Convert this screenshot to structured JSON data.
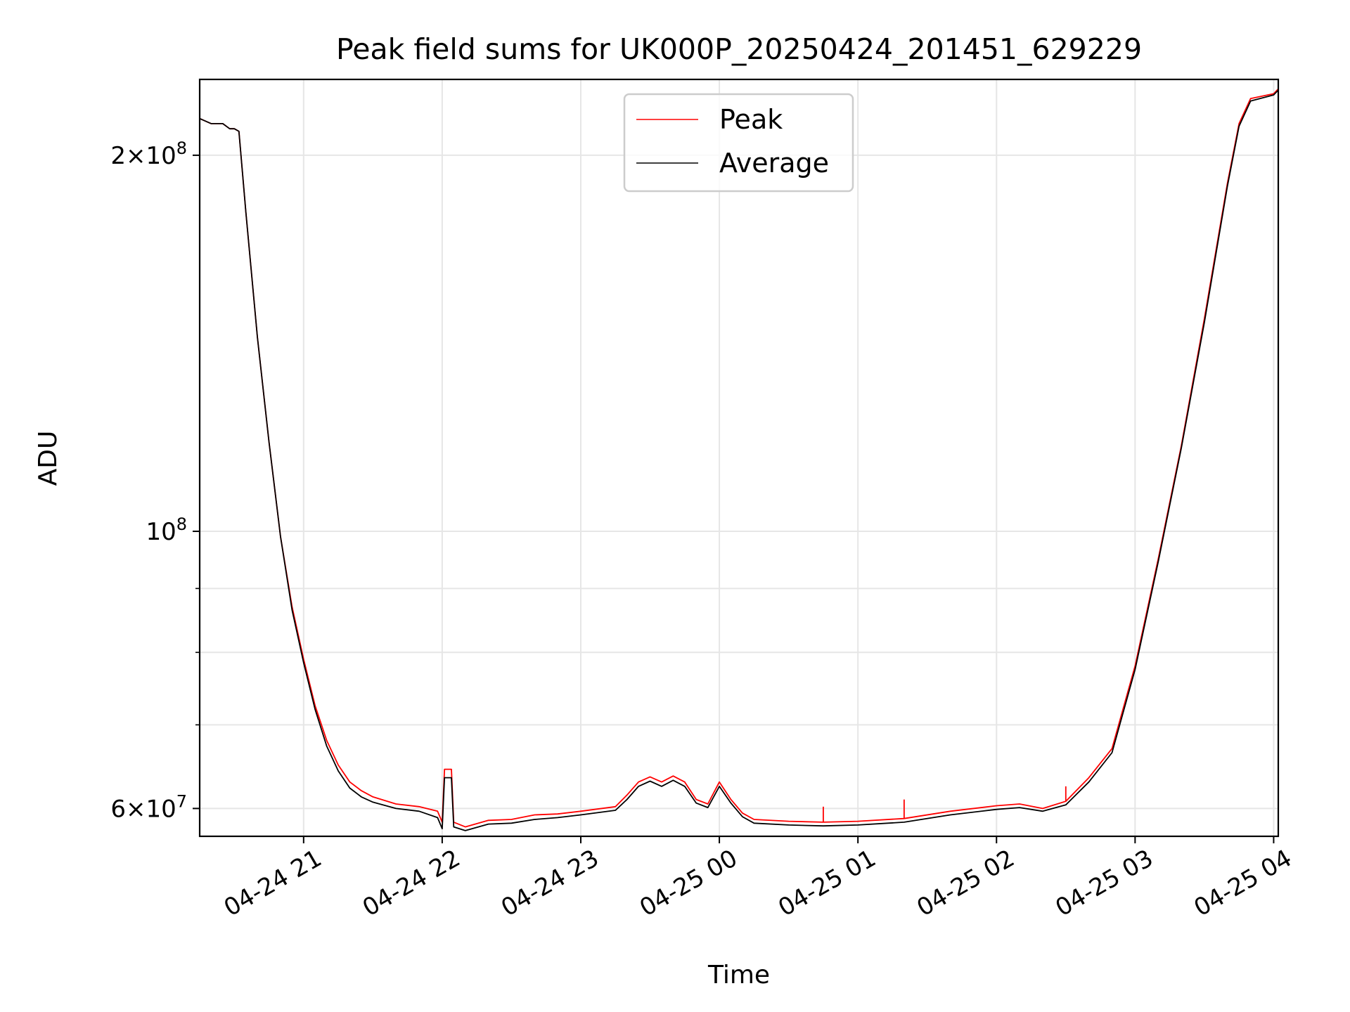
{
  "chart_data": {
    "type": "line",
    "title": "Peak field sums for UK000P_20250424_201451_629229",
    "xlabel": "Time",
    "ylabel": "ADU",
    "yscale": "log",
    "ylim": [
      57000000,
      230000000
    ],
    "xlim": [
      "2025-04-24 20:15",
      "2025-04-25 04:02"
    ],
    "grid": true,
    "legend_position": "top-center",
    "x_ticks": [
      {
        "value": "2025-04-24 21:00",
        "label": "04-24 21"
      },
      {
        "value": "2025-04-24 22:00",
        "label": "04-24 22"
      },
      {
        "value": "2025-04-24 23:00",
        "label": "04-24 23"
      },
      {
        "value": "2025-04-25 00:00",
        "label": "04-25 00"
      },
      {
        "value": "2025-04-25 01:00",
        "label": "04-25 01"
      },
      {
        "value": "2025-04-25 02:00",
        "label": "04-25 02"
      },
      {
        "value": "2025-04-25 03:00",
        "label": "04-25 03"
      },
      {
        "value": "2025-04-25 04:00",
        "label": "04-25 04"
      }
    ],
    "y_major_ticks": [
      {
        "value": 60000000,
        "mantissa": "6",
        "exp": "7"
      },
      {
        "value": 100000000,
        "mantissa": "",
        "exp": "8"
      },
      {
        "value": 200000000,
        "mantissa": "2",
        "exp": "8"
      }
    ],
    "y_minor_ticks": [
      70000000,
      80000000,
      90000000
    ],
    "series": [
      {
        "name": "Peak",
        "color": "#ff0000",
        "points": [
          [
            "2025-04-24 20:15",
            214000000
          ],
          [
            "2025-04-24 20:20",
            212000000
          ],
          [
            "2025-04-24 20:25",
            212000000
          ],
          [
            "2025-04-24 20:28",
            210000000
          ],
          [
            "2025-04-24 20:30",
            210000000
          ],
          [
            "2025-04-24 20:32",
            209000000
          ],
          [
            "2025-04-24 20:35",
            180000000
          ],
          [
            "2025-04-24 20:40",
            143000000
          ],
          [
            "2025-04-24 20:45",
            118000000
          ],
          [
            "2025-04-24 20:50",
            99000000
          ],
          [
            "2025-04-24 20:55",
            87000000
          ],
          [
            "2025-04-24 21:00",
            79000000
          ],
          [
            "2025-04-24 21:05",
            72500000
          ],
          [
            "2025-04-24 21:10",
            68000000
          ],
          [
            "2025-04-24 21:15",
            65000000
          ],
          [
            "2025-04-24 21:20",
            63000000
          ],
          [
            "2025-04-24 21:25",
            62000000
          ],
          [
            "2025-04-24 21:30",
            61300000
          ],
          [
            "2025-04-24 21:40",
            60500000
          ],
          [
            "2025-04-24 21:50",
            60200000
          ],
          [
            "2025-04-24 21:58",
            59700000
          ],
          [
            "2025-04-24 22:00",
            58500000
          ],
          [
            "2025-04-24 22:01",
            64500000
          ],
          [
            "2025-04-24 22:04",
            64500000
          ],
          [
            "2025-04-24 22:05",
            58500000
          ],
          [
            "2025-04-24 22:10",
            58000000
          ],
          [
            "2025-04-24 22:20",
            58700000
          ],
          [
            "2025-04-24 22:30",
            58800000
          ],
          [
            "2025-04-24 22:40",
            59300000
          ],
          [
            "2025-04-24 22:50",
            59400000
          ],
          [
            "2025-04-24 23:00",
            59700000
          ],
          [
            "2025-04-24 23:15",
            60200000
          ],
          [
            "2025-04-24 23:20",
            61500000
          ],
          [
            "2025-04-24 23:25",
            63000000
          ],
          [
            "2025-04-24 23:30",
            63600000
          ],
          [
            "2025-04-24 23:35",
            63000000
          ],
          [
            "2025-04-24 23:40",
            63700000
          ],
          [
            "2025-04-24 23:45",
            63000000
          ],
          [
            "2025-04-24 23:50",
            61000000
          ],
          [
            "2025-04-24 23:55",
            60500000
          ],
          [
            "2025-04-25 00:00",
            63000000
          ],
          [
            "2025-04-25 00:05",
            61000000
          ],
          [
            "2025-04-25 00:10",
            59500000
          ],
          [
            "2025-04-25 00:15",
            58800000
          ],
          [
            "2025-04-25 00:30",
            58600000
          ],
          [
            "2025-04-25 00:45",
            58500000
          ],
          [
            "2025-04-25 01:00",
            58600000
          ],
          [
            "2025-04-25 01:20",
            58900000
          ],
          [
            "2025-04-25 01:40",
            59700000
          ],
          [
            "2025-04-25 02:00",
            60300000
          ],
          [
            "2025-04-25 02:10",
            60500000
          ],
          [
            "2025-04-25 02:20",
            60000000
          ],
          [
            "2025-04-25 02:30",
            60800000
          ],
          [
            "2025-04-25 02:40",
            63500000
          ],
          [
            "2025-04-25 02:50",
            67000000
          ],
          [
            "2025-04-25 03:00",
            78000000
          ],
          [
            "2025-04-25 03:10",
            95000000
          ],
          [
            "2025-04-25 03:20",
            117000000
          ],
          [
            "2025-04-25 03:30",
            148000000
          ],
          [
            "2025-04-25 03:40",
            190000000
          ],
          [
            "2025-04-25 03:45",
            212000000
          ],
          [
            "2025-04-25 03:50",
            222000000
          ],
          [
            "2025-04-25 04:00",
            224000000
          ],
          [
            "2025-04-25 04:02",
            226000000
          ]
        ]
      },
      {
        "name": "Average",
        "color": "#000000",
        "points": [
          [
            "2025-04-24 20:15",
            214000000
          ],
          [
            "2025-04-24 20:20",
            212000000
          ],
          [
            "2025-04-24 20:25",
            212000000
          ],
          [
            "2025-04-24 20:28",
            210000000
          ],
          [
            "2025-04-24 20:30",
            210000000
          ],
          [
            "2025-04-24 20:32",
            209000000
          ],
          [
            "2025-04-24 20:35",
            180000000
          ],
          [
            "2025-04-24 20:40",
            143000000
          ],
          [
            "2025-04-24 20:45",
            118000000
          ],
          [
            "2025-04-24 20:50",
            99000000
          ],
          [
            "2025-04-24 20:55",
            86500000
          ],
          [
            "2025-04-24 21:00",
            78500000
          ],
          [
            "2025-04-24 21:05",
            72000000
          ],
          [
            "2025-04-24 21:10",
            67300000
          ],
          [
            "2025-04-24 21:15",
            64300000
          ],
          [
            "2025-04-24 21:20",
            62300000
          ],
          [
            "2025-04-24 21:25",
            61300000
          ],
          [
            "2025-04-24 21:30",
            60700000
          ],
          [
            "2025-04-24 21:40",
            60000000
          ],
          [
            "2025-04-24 21:50",
            59700000
          ],
          [
            "2025-04-24 21:58",
            59000000
          ],
          [
            "2025-04-24 22:00",
            57800000
          ],
          [
            "2025-04-24 22:01",
            63500000
          ],
          [
            "2025-04-24 22:04",
            63500000
          ],
          [
            "2025-04-24 22:05",
            58000000
          ],
          [
            "2025-04-24 22:10",
            57600000
          ],
          [
            "2025-04-24 22:20",
            58300000
          ],
          [
            "2025-04-24 22:30",
            58400000
          ],
          [
            "2025-04-24 22:40",
            58800000
          ],
          [
            "2025-04-24 22:50",
            59000000
          ],
          [
            "2025-04-24 23:00",
            59300000
          ],
          [
            "2025-04-24 23:15",
            59800000
          ],
          [
            "2025-04-24 23:20",
            61000000
          ],
          [
            "2025-04-24 23:25",
            62500000
          ],
          [
            "2025-04-24 23:30",
            63100000
          ],
          [
            "2025-04-24 23:35",
            62500000
          ],
          [
            "2025-04-24 23:40",
            63200000
          ],
          [
            "2025-04-24 23:45",
            62500000
          ],
          [
            "2025-04-24 23:50",
            60600000
          ],
          [
            "2025-04-24 23:55",
            60100000
          ],
          [
            "2025-04-25 00:00",
            62500000
          ],
          [
            "2025-04-25 00:05",
            60600000
          ],
          [
            "2025-04-25 00:10",
            59100000
          ],
          [
            "2025-04-25 00:15",
            58400000
          ],
          [
            "2025-04-25 00:30",
            58200000
          ],
          [
            "2025-04-25 00:45",
            58100000
          ],
          [
            "2025-04-25 01:00",
            58200000
          ],
          [
            "2025-04-25 01:20",
            58500000
          ],
          [
            "2025-04-25 01:40",
            59300000
          ],
          [
            "2025-04-25 02:00",
            59900000
          ],
          [
            "2025-04-25 02:10",
            60100000
          ],
          [
            "2025-04-25 02:20",
            59700000
          ],
          [
            "2025-04-25 02:30",
            60400000
          ],
          [
            "2025-04-25 02:40",
            63000000
          ],
          [
            "2025-04-25 02:50",
            66500000
          ],
          [
            "2025-04-25 03:00",
            77500000
          ],
          [
            "2025-04-25 03:10",
            94500000
          ],
          [
            "2025-04-25 03:20",
            116500000
          ],
          [
            "2025-04-25 03:30",
            147000000
          ],
          [
            "2025-04-25 03:40",
            189000000
          ],
          [
            "2025-04-25 03:45",
            211000000
          ],
          [
            "2025-04-25 03:50",
            221000000
          ],
          [
            "2025-04-25 04:00",
            223500000
          ],
          [
            "2025-04-25 04:02",
            225500000
          ]
        ]
      }
    ],
    "spikes": [
      {
        "series": "Peak",
        "time": "2025-04-25 00:45",
        "value": 60200000
      },
      {
        "series": "Peak",
        "time": "2025-04-25 01:20",
        "value": 61000000
      },
      {
        "series": "Peak",
        "time": "2025-04-25 02:30",
        "value": 62500000
      }
    ]
  }
}
